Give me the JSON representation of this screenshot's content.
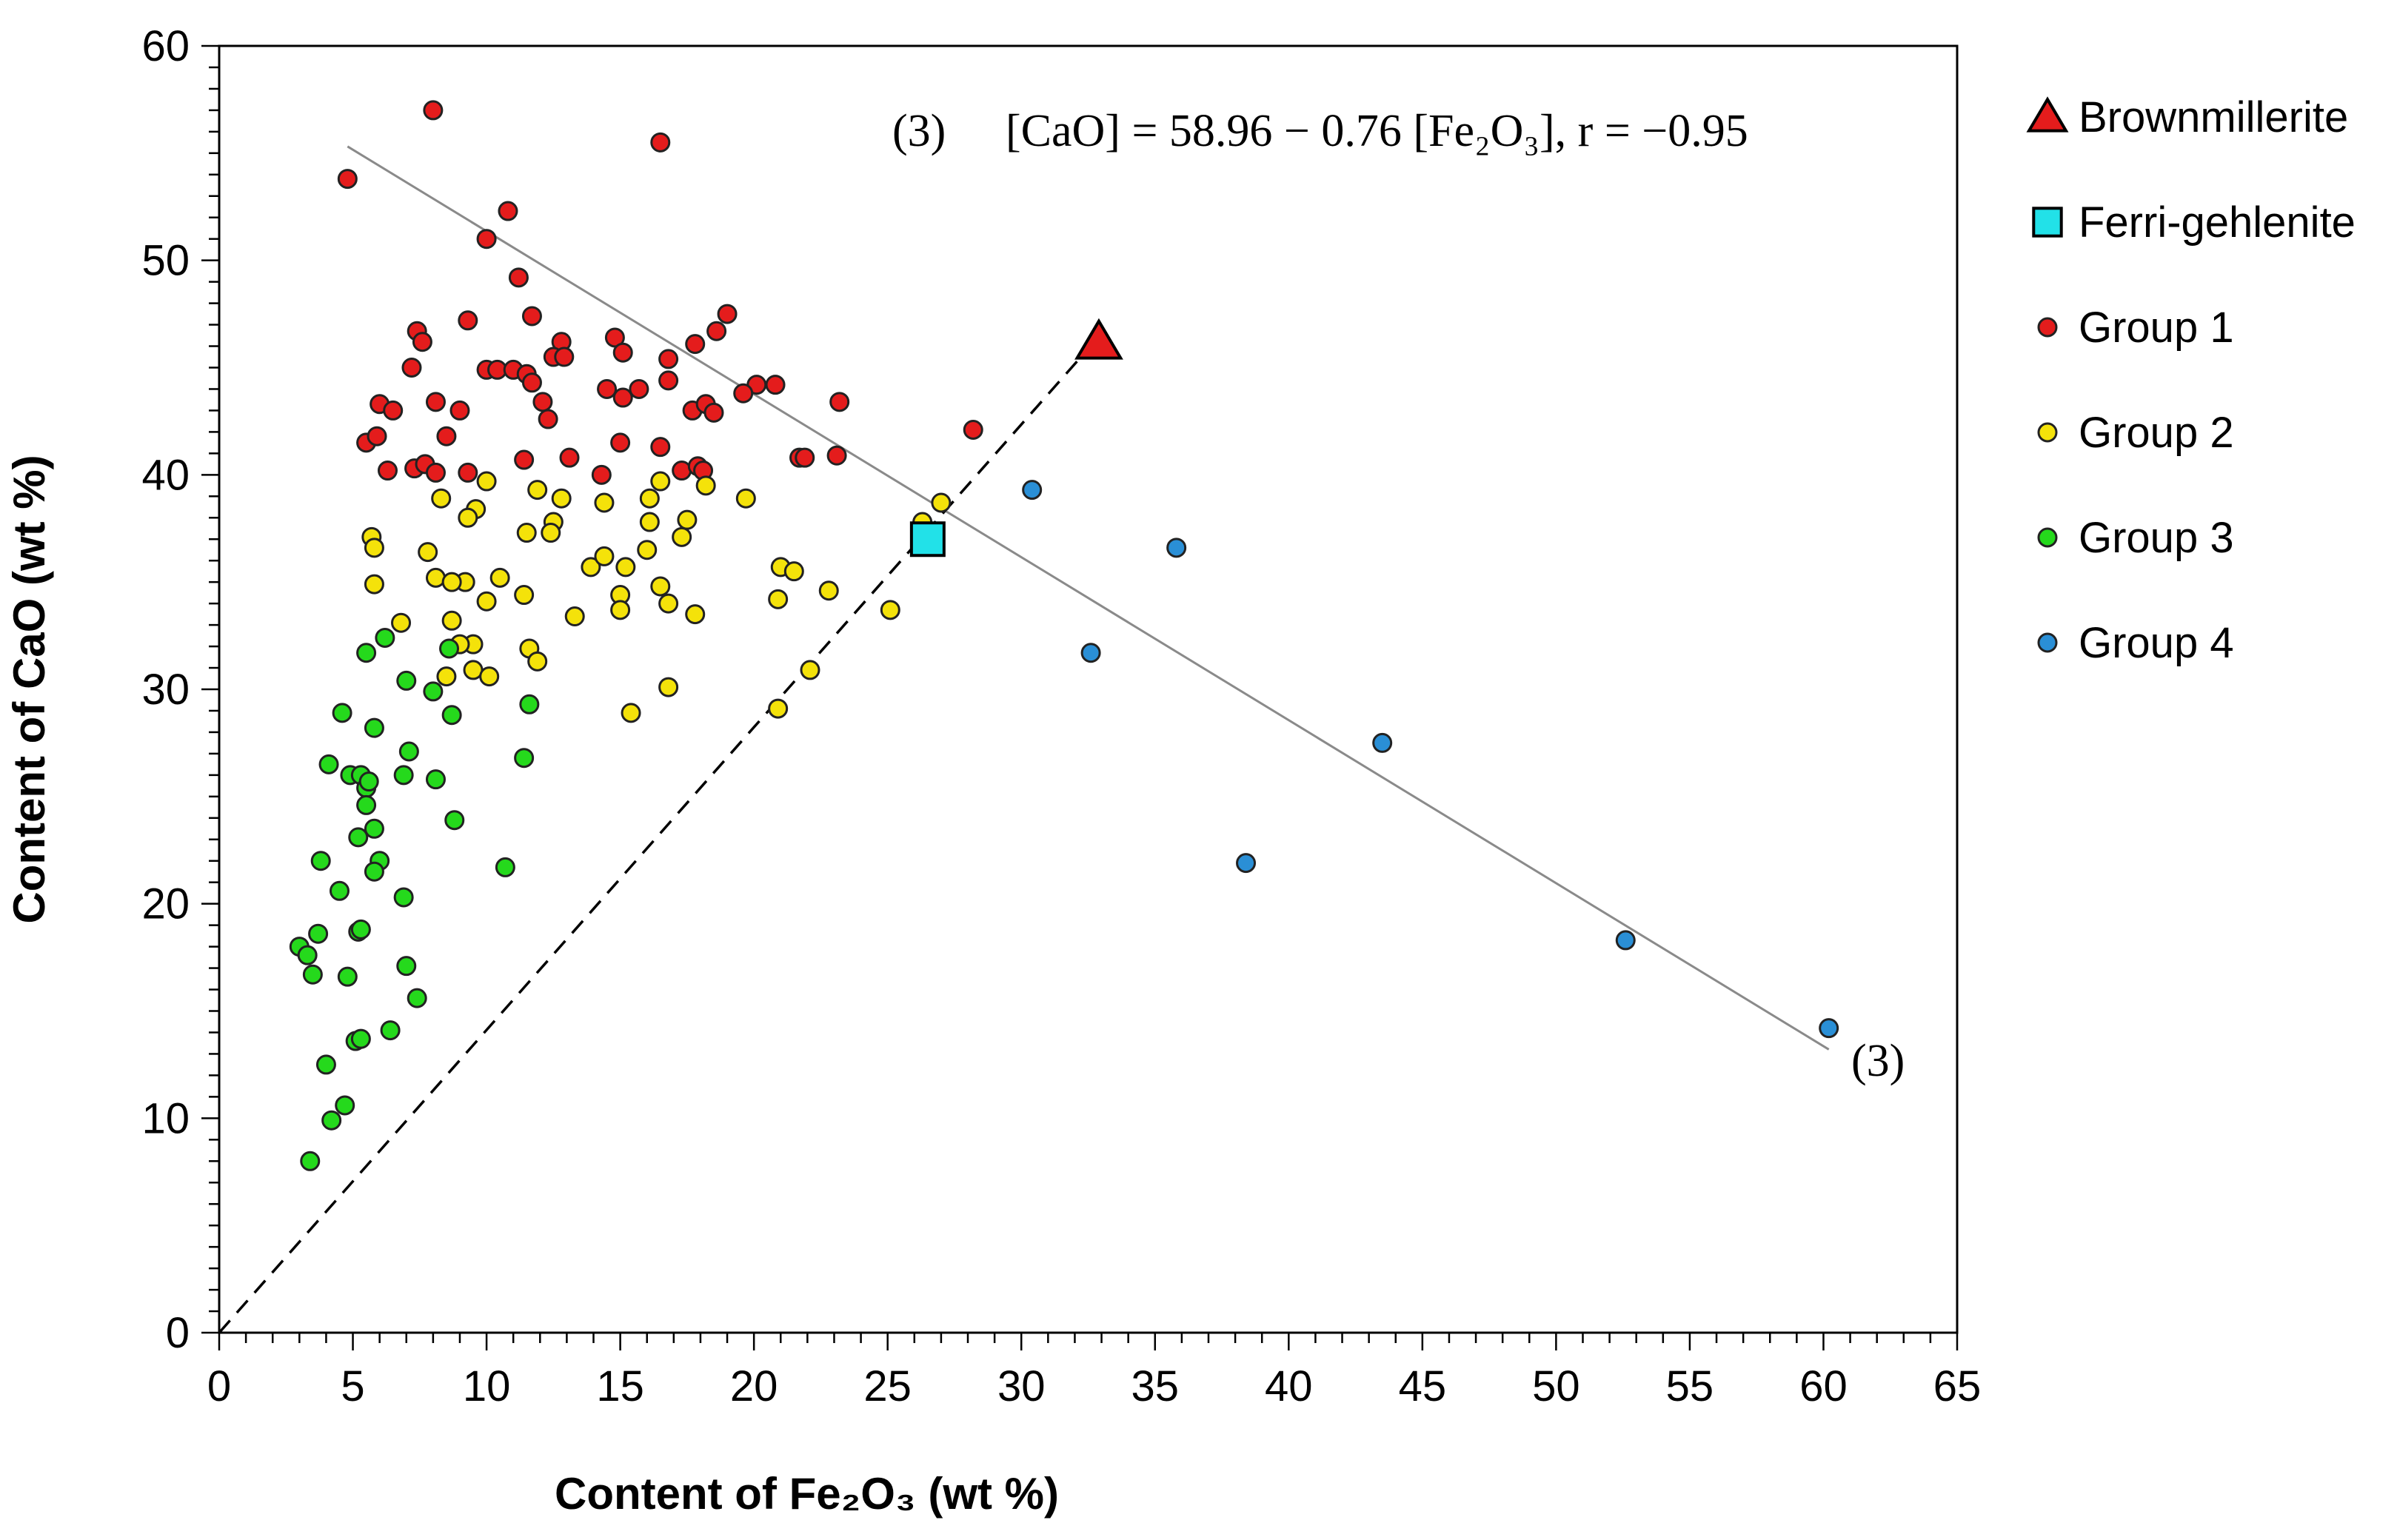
{
  "chart_data": {
    "type": "scatter",
    "title": "",
    "xlabel": "Content of Fe₂O₃ (wt %)",
    "ylabel": "Content of CaO (wt %)",
    "xlim": [
      0,
      65
    ],
    "ylim": [
      0,
      60
    ],
    "xticks": [
      0,
      5,
      10,
      15,
      20,
      25,
      30,
      35,
      40,
      45,
      50,
      55,
      60,
      65
    ],
    "yticks": [
      0,
      10,
      20,
      30,
      40,
      50,
      60
    ],
    "grid": false,
    "legend_position": "right",
    "colors": {
      "brownmillerite": "#e41c1c",
      "ferri_gehlenite": "#22e1e8",
      "group1": "#e41c1c",
      "group2": "#f4e20a",
      "group3": "#25d91c",
      "group4": "#2a8fd6"
    },
    "legend": [
      {
        "key": "brownmillerite",
        "label": "Brownmillerite",
        "marker": "triangle"
      },
      {
        "key": "ferri_gehlenite",
        "label": "Ferri-gehlenite",
        "marker": "square"
      },
      {
        "key": "group1",
        "label": "Group 1",
        "marker": "circle"
      },
      {
        "key": "group2",
        "label": "Group 2",
        "marker": "circle"
      },
      {
        "key": "group3",
        "label": "Group 3",
        "marker": "circle"
      },
      {
        "key": "group4",
        "label": "Group 4",
        "marker": "circle"
      }
    ],
    "annotations": {
      "equation_label": "(3)",
      "equation_text": "[CaO] = 58.96 − 0.76 [Fe₂O₃], r = −0.95",
      "line_end_label": "(3)"
    },
    "regression_line": {
      "label": "(3)",
      "intercept": 58.96,
      "slope": -0.76,
      "x_start": 4.8,
      "x_end": 60.2
    },
    "reference_line": {
      "style": "dashed",
      "x": [
        0,
        32.8
      ],
      "y": [
        0,
        46.3
      ]
    },
    "series": [
      {
        "key": "brownmillerite",
        "name": "Brownmillerite",
        "marker": "triangle",
        "points": [
          [
            32.9,
            46.2
          ]
        ]
      },
      {
        "key": "ferri_gehlenite",
        "name": "Ferri-gehlenite",
        "marker": "square",
        "points": [
          [
            26.5,
            37.0
          ]
        ]
      },
      {
        "key": "group1",
        "name": "Group 1",
        "marker": "circle",
        "points": [
          [
            8.0,
            57.0
          ],
          [
            16.5,
            55.5
          ],
          [
            4.8,
            53.8
          ],
          [
            10.8,
            52.3
          ],
          [
            10.0,
            51.0
          ],
          [
            11.2,
            49.2
          ],
          [
            9.3,
            47.2
          ],
          [
            11.7,
            47.4
          ],
          [
            19.0,
            47.5
          ],
          [
            18.6,
            46.7
          ],
          [
            7.4,
            46.7
          ],
          [
            7.6,
            46.2
          ],
          [
            14.8,
            46.4
          ],
          [
            12.8,
            46.2
          ],
          [
            17.8,
            46.1
          ],
          [
            12.5,
            45.5
          ],
          [
            15.1,
            45.7
          ],
          [
            12.9,
            45.5
          ],
          [
            16.8,
            45.4
          ],
          [
            7.2,
            45.0
          ],
          [
            10.0,
            44.9
          ],
          [
            10.4,
            44.9
          ],
          [
            11.0,
            44.9
          ],
          [
            11.5,
            44.7
          ],
          [
            11.7,
            44.3
          ],
          [
            14.5,
            44.0
          ],
          [
            15.7,
            44.0
          ],
          [
            20.1,
            44.2
          ],
          [
            20.8,
            44.2
          ],
          [
            16.8,
            44.4
          ],
          [
            19.6,
            43.8
          ],
          [
            15.1,
            43.6
          ],
          [
            12.1,
            43.4
          ],
          [
            17.7,
            43.0
          ],
          [
            18.2,
            43.3
          ],
          [
            6.0,
            43.3
          ],
          [
            8.1,
            43.4
          ],
          [
            9.0,
            43.0
          ],
          [
            23.2,
            43.4
          ],
          [
            6.5,
            43.0
          ],
          [
            18.5,
            42.9
          ],
          [
            12.3,
            42.6
          ],
          [
            28.2,
            42.1
          ],
          [
            5.5,
            41.5
          ],
          [
            5.9,
            41.8
          ],
          [
            8.5,
            41.8
          ],
          [
            15.0,
            41.5
          ],
          [
            16.5,
            41.3
          ],
          [
            21.7,
            40.8
          ],
          [
            21.9,
            40.8
          ],
          [
            23.1,
            40.9
          ],
          [
            11.4,
            40.7
          ],
          [
            13.1,
            40.8
          ],
          [
            7.3,
            40.3
          ],
          [
            7.7,
            40.5
          ],
          [
            6.3,
            40.2
          ],
          [
            8.1,
            40.1
          ],
          [
            9.3,
            40.1
          ],
          [
            14.3,
            40.0
          ],
          [
            17.3,
            40.2
          ],
          [
            17.9,
            40.4
          ],
          [
            18.1,
            40.2
          ]
        ]
      },
      {
        "key": "group2",
        "name": "Group 2",
        "marker": "circle",
        "points": [
          [
            27.0,
            38.7
          ],
          [
            26.3,
            37.8
          ],
          [
            8.3,
            38.9
          ],
          [
            9.6,
            38.4
          ],
          [
            9.3,
            38.0
          ],
          [
            10.0,
            39.7
          ],
          [
            11.9,
            39.3
          ],
          [
            12.8,
            38.9
          ],
          [
            14.4,
            38.7
          ],
          [
            16.1,
            38.9
          ],
          [
            16.5,
            39.7
          ],
          [
            18.2,
            39.5
          ],
          [
            19.7,
            38.9
          ],
          [
            11.5,
            37.3
          ],
          [
            12.5,
            37.8
          ],
          [
            12.4,
            37.3
          ],
          [
            16.1,
            37.8
          ],
          [
            17.5,
            37.9
          ],
          [
            17.3,
            37.1
          ],
          [
            5.7,
            37.1
          ],
          [
            5.8,
            36.6
          ],
          [
            7.8,
            36.4
          ],
          [
            8.1,
            35.2
          ],
          [
            13.9,
            35.7
          ],
          [
            14.4,
            36.2
          ],
          [
            15.2,
            35.7
          ],
          [
            16.0,
            36.5
          ],
          [
            21.0,
            35.7
          ],
          [
            21.5,
            35.5
          ],
          [
            9.2,
            35.0
          ],
          [
            10.5,
            35.2
          ],
          [
            8.7,
            35.0
          ],
          [
            5.8,
            34.9
          ],
          [
            11.4,
            34.4
          ],
          [
            15.0,
            34.4
          ],
          [
            16.5,
            34.8
          ],
          [
            20.9,
            34.2
          ],
          [
            22.8,
            34.6
          ],
          [
            10.0,
            34.1
          ],
          [
            13.3,
            33.4
          ],
          [
            15.0,
            33.7
          ],
          [
            16.8,
            34.0
          ],
          [
            17.8,
            33.5
          ],
          [
            25.1,
            33.7
          ],
          [
            6.8,
            33.1
          ],
          [
            8.7,
            33.2
          ],
          [
            9.5,
            32.1
          ],
          [
            9.0,
            32.1
          ],
          [
            11.6,
            31.9
          ],
          [
            11.9,
            31.3
          ],
          [
            9.5,
            30.9
          ],
          [
            10.1,
            30.6
          ],
          [
            8.5,
            30.6
          ],
          [
            22.1,
            30.9
          ],
          [
            16.8,
            30.1
          ],
          [
            15.4,
            28.9
          ],
          [
            20.9,
            29.1
          ]
        ]
      },
      {
        "key": "group3",
        "name": "Group 3",
        "marker": "circle",
        "points": [
          [
            6.2,
            32.4
          ],
          [
            5.5,
            31.7
          ],
          [
            8.6,
            31.9
          ],
          [
            7.0,
            30.4
          ],
          [
            8.0,
            29.9
          ],
          [
            11.6,
            29.3
          ],
          [
            4.6,
            28.9
          ],
          [
            8.7,
            28.8
          ],
          [
            5.8,
            28.2
          ],
          [
            7.1,
            27.1
          ],
          [
            11.4,
            26.8
          ],
          [
            4.1,
            26.5
          ],
          [
            6.9,
            26.0
          ],
          [
            4.9,
            26.0
          ],
          [
            5.3,
            26.0
          ],
          [
            8.1,
            25.8
          ],
          [
            5.5,
            25.4
          ],
          [
            5.6,
            25.7
          ],
          [
            5.5,
            24.6
          ],
          [
            5.8,
            23.5
          ],
          [
            8.8,
            23.9
          ],
          [
            5.2,
            23.1
          ],
          [
            3.8,
            22.0
          ],
          [
            6.0,
            22.0
          ],
          [
            10.7,
            21.7
          ],
          [
            5.8,
            21.5
          ],
          [
            4.5,
            20.6
          ],
          [
            6.9,
            20.3
          ],
          [
            5.2,
            18.7
          ],
          [
            5.3,
            18.8
          ],
          [
            3.7,
            18.6
          ],
          [
            3.0,
            18.0
          ],
          [
            3.3,
            17.6
          ],
          [
            7.0,
            17.1
          ],
          [
            3.5,
            16.7
          ],
          [
            4.8,
            16.6
          ],
          [
            7.4,
            15.6
          ],
          [
            6.4,
            14.1
          ],
          [
            5.1,
            13.6
          ],
          [
            5.3,
            13.7
          ],
          [
            4.0,
            12.5
          ],
          [
            4.7,
            10.6
          ],
          [
            4.2,
            9.9
          ],
          [
            3.4,
            8.0
          ]
        ]
      },
      {
        "key": "group4",
        "name": "Group 4",
        "marker": "circle",
        "points": [
          [
            30.4,
            39.3
          ],
          [
            35.8,
            36.6
          ],
          [
            32.6,
            31.7
          ],
          [
            43.5,
            27.5
          ],
          [
            38.4,
            21.9
          ],
          [
            52.6,
            18.3
          ],
          [
            60.2,
            14.2
          ]
        ]
      }
    ]
  }
}
